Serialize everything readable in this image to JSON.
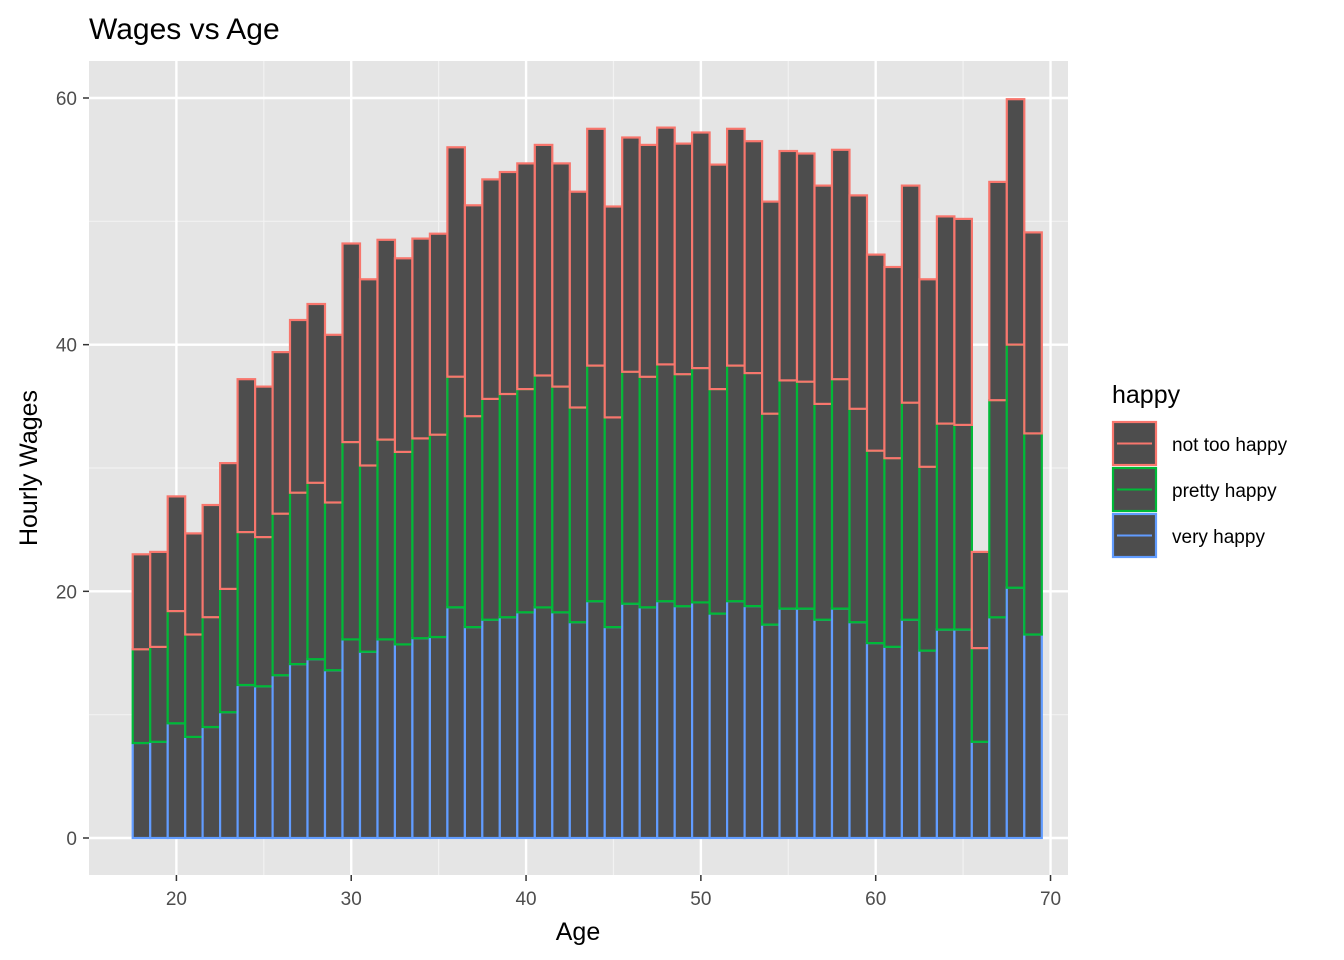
{
  "chart_data": {
    "type": "bar",
    "stacked": true,
    "title": "Wages vs Age",
    "xlabel": "Age",
    "ylabel": "Hourly Wages",
    "xlim": [
      15,
      71
    ],
    "ylim": [
      -3,
      63
    ],
    "x_ticks": [
      20,
      30,
      40,
      50,
      60,
      70
    ],
    "y_ticks": [
      0,
      20,
      40,
      60
    ],
    "grid": true,
    "bar_fill": "#4d4d4d",
    "panel_background": "#e5e5e5",
    "legend": {
      "title": "happy",
      "position": "right"
    },
    "x": [
      18,
      19,
      20,
      21,
      22,
      23,
      24,
      25,
      26,
      27,
      28,
      29,
      30,
      31,
      32,
      33,
      34,
      35,
      36,
      37,
      38,
      39,
      40,
      41,
      42,
      43,
      44,
      45,
      46,
      47,
      48,
      49,
      50,
      51,
      52,
      53,
      54,
      55,
      56,
      57,
      58,
      59,
      60,
      61,
      62,
      63,
      64,
      65,
      66,
      67,
      68,
      69
    ],
    "series": [
      {
        "name": "very happy",
        "color": "#619cff",
        "values": [
          7.7,
          7.8,
          9.3,
          8.2,
          9.0,
          10.2,
          12.4,
          12.3,
          13.2,
          14.1,
          14.5,
          13.6,
          16.1,
          15.1,
          16.1,
          15.7,
          16.2,
          16.3,
          18.7,
          17.1,
          17.7,
          17.9,
          18.3,
          18.7,
          18.3,
          17.5,
          19.2,
          17.1,
          19.0,
          18.7,
          19.2,
          18.8,
          19.1,
          18.2,
          19.2,
          18.8,
          17.3,
          18.6,
          18.6,
          17.7,
          18.6,
          17.5,
          15.8,
          15.5,
          17.7,
          15.2,
          16.9,
          16.9,
          7.8,
          17.9,
          20.3,
          16.5
        ]
      },
      {
        "name": "pretty happy",
        "color": "#00ba38",
        "values": [
          7.6,
          7.7,
          9.1,
          8.3,
          8.9,
          10.0,
          12.4,
          12.1,
          13.1,
          13.9,
          14.3,
          13.6,
          16.0,
          15.1,
          16.2,
          15.6,
          16.2,
          16.4,
          18.7,
          17.1,
          17.9,
          18.1,
          18.1,
          18.8,
          18.3,
          17.4,
          19.1,
          17.0,
          18.8,
          18.7,
          19.2,
          18.8,
          19.0,
          18.2,
          19.1,
          18.9,
          17.1,
          18.5,
          18.4,
          17.5,
          18.6,
          17.3,
          15.6,
          15.3,
          17.6,
          14.9,
          16.7,
          16.6,
          7.6,
          17.6,
          19.7,
          16.3
        ]
      },
      {
        "name": "not too happy",
        "color": "#f8766d",
        "values": [
          7.7,
          7.7,
          9.3,
          8.2,
          9.1,
          10.2,
          12.4,
          12.2,
          13.1,
          14.0,
          14.5,
          13.6,
          16.1,
          15.1,
          16.2,
          15.7,
          16.2,
          16.3,
          18.6,
          17.1,
          17.8,
          18.0,
          18.3,
          18.7,
          18.1,
          17.5,
          19.2,
          17.1,
          19.0,
          18.8,
          19.2,
          18.7,
          19.1,
          18.2,
          19.2,
          18.8,
          17.2,
          18.6,
          18.5,
          17.7,
          18.6,
          17.3,
          15.9,
          15.5,
          17.6,
          15.2,
          16.8,
          16.7,
          7.8,
          17.7,
          19.9,
          16.3
        ]
      }
    ]
  }
}
